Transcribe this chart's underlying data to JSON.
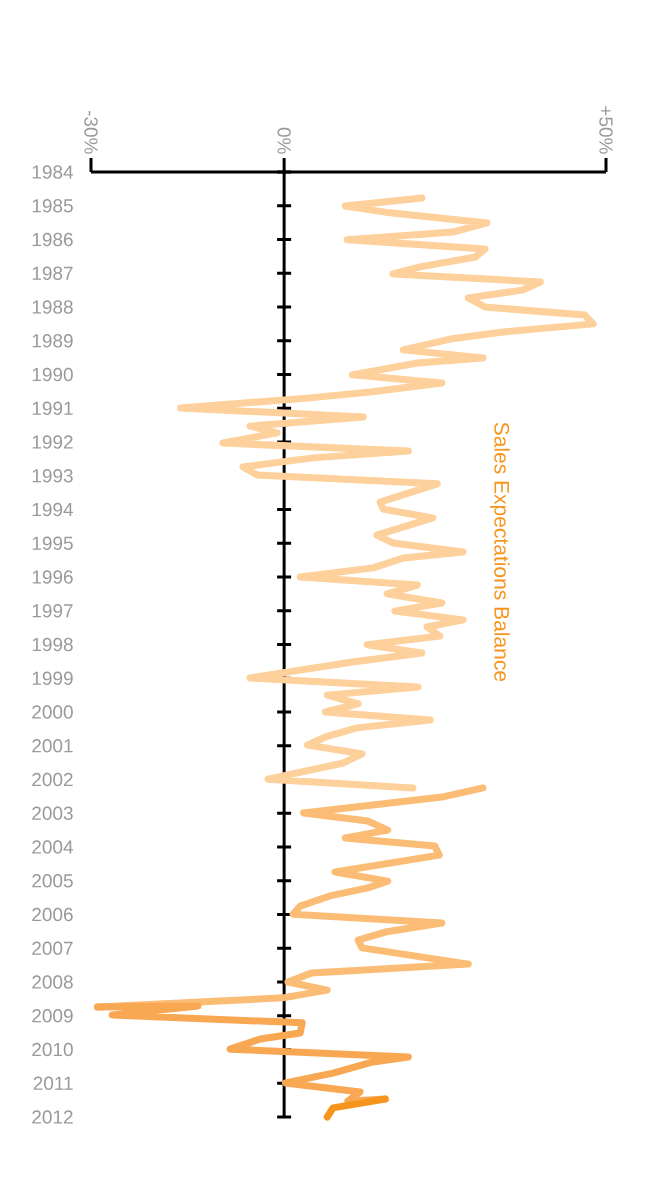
{
  "chart_data": {
    "type": "line",
    "orientation": "horizontal",
    "annotations": [
      "Sales Expectations Balance"
    ],
    "xlim": [
      -30,
      50
    ],
    "xticks": [
      {
        "value": -30,
        "label": "-30%"
      },
      {
        "value": 0,
        "label": "0%"
      },
      {
        "value": 50,
        "label": "+50%"
      }
    ],
    "ylim": [
      2012,
      1984
    ],
    "yticks": [
      1984,
      1985,
      1986,
      1987,
      1988,
      1989,
      1990,
      1991,
      1992,
      1993,
      1994,
      1995,
      1996,
      1997,
      1998,
      1999,
      2000,
      2001,
      2002,
      2003,
      2004,
      2005,
      2006,
      2007,
      2008,
      2009,
      2010,
      2011,
      2012
    ],
    "series": [
      {
        "color": "#fdd09c",
        "x": [
          1984.77,
          1985.01,
          1985.21,
          1985.51,
          1985.78,
          1986.01,
          1986.28,
          1986.52,
          1986.81,
          1987.02,
          1987.26,
          1987.5,
          1987.73,
          1988.0,
          1988.24,
          1988.5,
          1988.74,
          1988.95,
          1989.27,
          1989.51,
          1989.66,
          1990.01,
          1990.25,
          1990.52,
          1990.7,
          1990.99,
          1991.26,
          1991.53,
          1991.73,
          1992.03,
          1992.27,
          1992.47,
          1992.74,
          1992.98,
          1993.24,
          1993.78,
          1993.99,
          1994.25,
          1994.76,
          1994.99,
          1995.26,
          1995.44,
          1995.73,
          1996.0,
          1996.24,
          1996.5,
          1996.77,
          1997.01,
          1997.27,
          1997.48,
          1997.75,
          1998.01,
          1998.25,
          1998.52,
          1998.99,
          1999.26,
          1999.5,
          1999.76,
          2000.0,
          2000.24,
          2000.47,
          2000.74,
          2000.98,
          2001.24,
          2001.51,
          2001.99,
          2002.25
        ],
        "values": [
          21.4,
          9.5,
          16.5,
          31.5,
          26.2,
          9.8,
          31.2,
          29.7,
          21.1,
          16.9,
          39.8,
          37.0,
          28.6,
          31.2,
          46.7,
          48.0,
          34.0,
          25.8,
          18.5,
          30.9,
          20.7,
          10.6,
          24.5,
          13.4,
          3.6,
          -16.1,
          12.3,
          -5.3,
          -1.1,
          -9.5,
          19.3,
          4.5,
          -6.4,
          -4.2,
          23.8,
          14.9,
          15.4,
          23.1,
          14.4,
          16.9,
          27.8,
          18.5,
          13.8,
          2.5,
          20.7,
          16.0,
          24.5,
          17.2,
          27.8,
          22.2,
          24.2,
          12.9,
          21.4,
          10.6,
          -5.3,
          20.8,
          6.7,
          11.5,
          6.4,
          22.7,
          11.3,
          6.4,
          3.6,
          12.1,
          9.2,
          -2.5,
          20.0
        ]
      },
      {
        "color": "#fbbd75",
        "x": [
          2002.25,
          2002.52,
          2002.99,
          2003.23,
          2003.5,
          2003.73,
          2003.97,
          2004.24,
          2004.74,
          2005.01,
          2005.21,
          2005.45,
          2005.75,
          2005.99,
          2006.25,
          2006.52,
          2006.76,
          2006.99,
          2007.47,
          2007.73,
          2008.0,
          2008.24,
          2008.47,
          2008.74
        ],
        "values": [
          30.9,
          24.5,
          3.0,
          13.0,
          16.1,
          9.5,
          23.4,
          24.1,
          7.9,
          16.1,
          13.0,
          7.1,
          2.5,
          1.4,
          24.5,
          15.7,
          11.5,
          12.1,
          28.6,
          4.3,
          0.6,
          6.7,
          -0.2,
          -29.0
        ]
      },
      {
        "color": "#f8a753",
        "x": [
          2008.74,
          2008.71,
          2008.98,
          2009.21,
          2009.51,
          2009.69,
          2009.99,
          2010.22,
          2010.37,
          2010.7,
          2010.99,
          2011.26,
          2011.53,
          2011.47
        ],
        "values": [
          -29.0,
          -13.4,
          -26.7,
          2.8,
          2.5,
          -3.7,
          -8.4,
          19.3,
          13.8,
          7.6,
          0.2,
          11.8,
          9.9,
          15.7
        ]
      },
      {
        "color": "#f7941d",
        "x": [
          2011.47,
          2011.73,
          2012.0
        ],
        "values": [
          15.7,
          7.6,
          6.7
        ]
      }
    ]
  }
}
